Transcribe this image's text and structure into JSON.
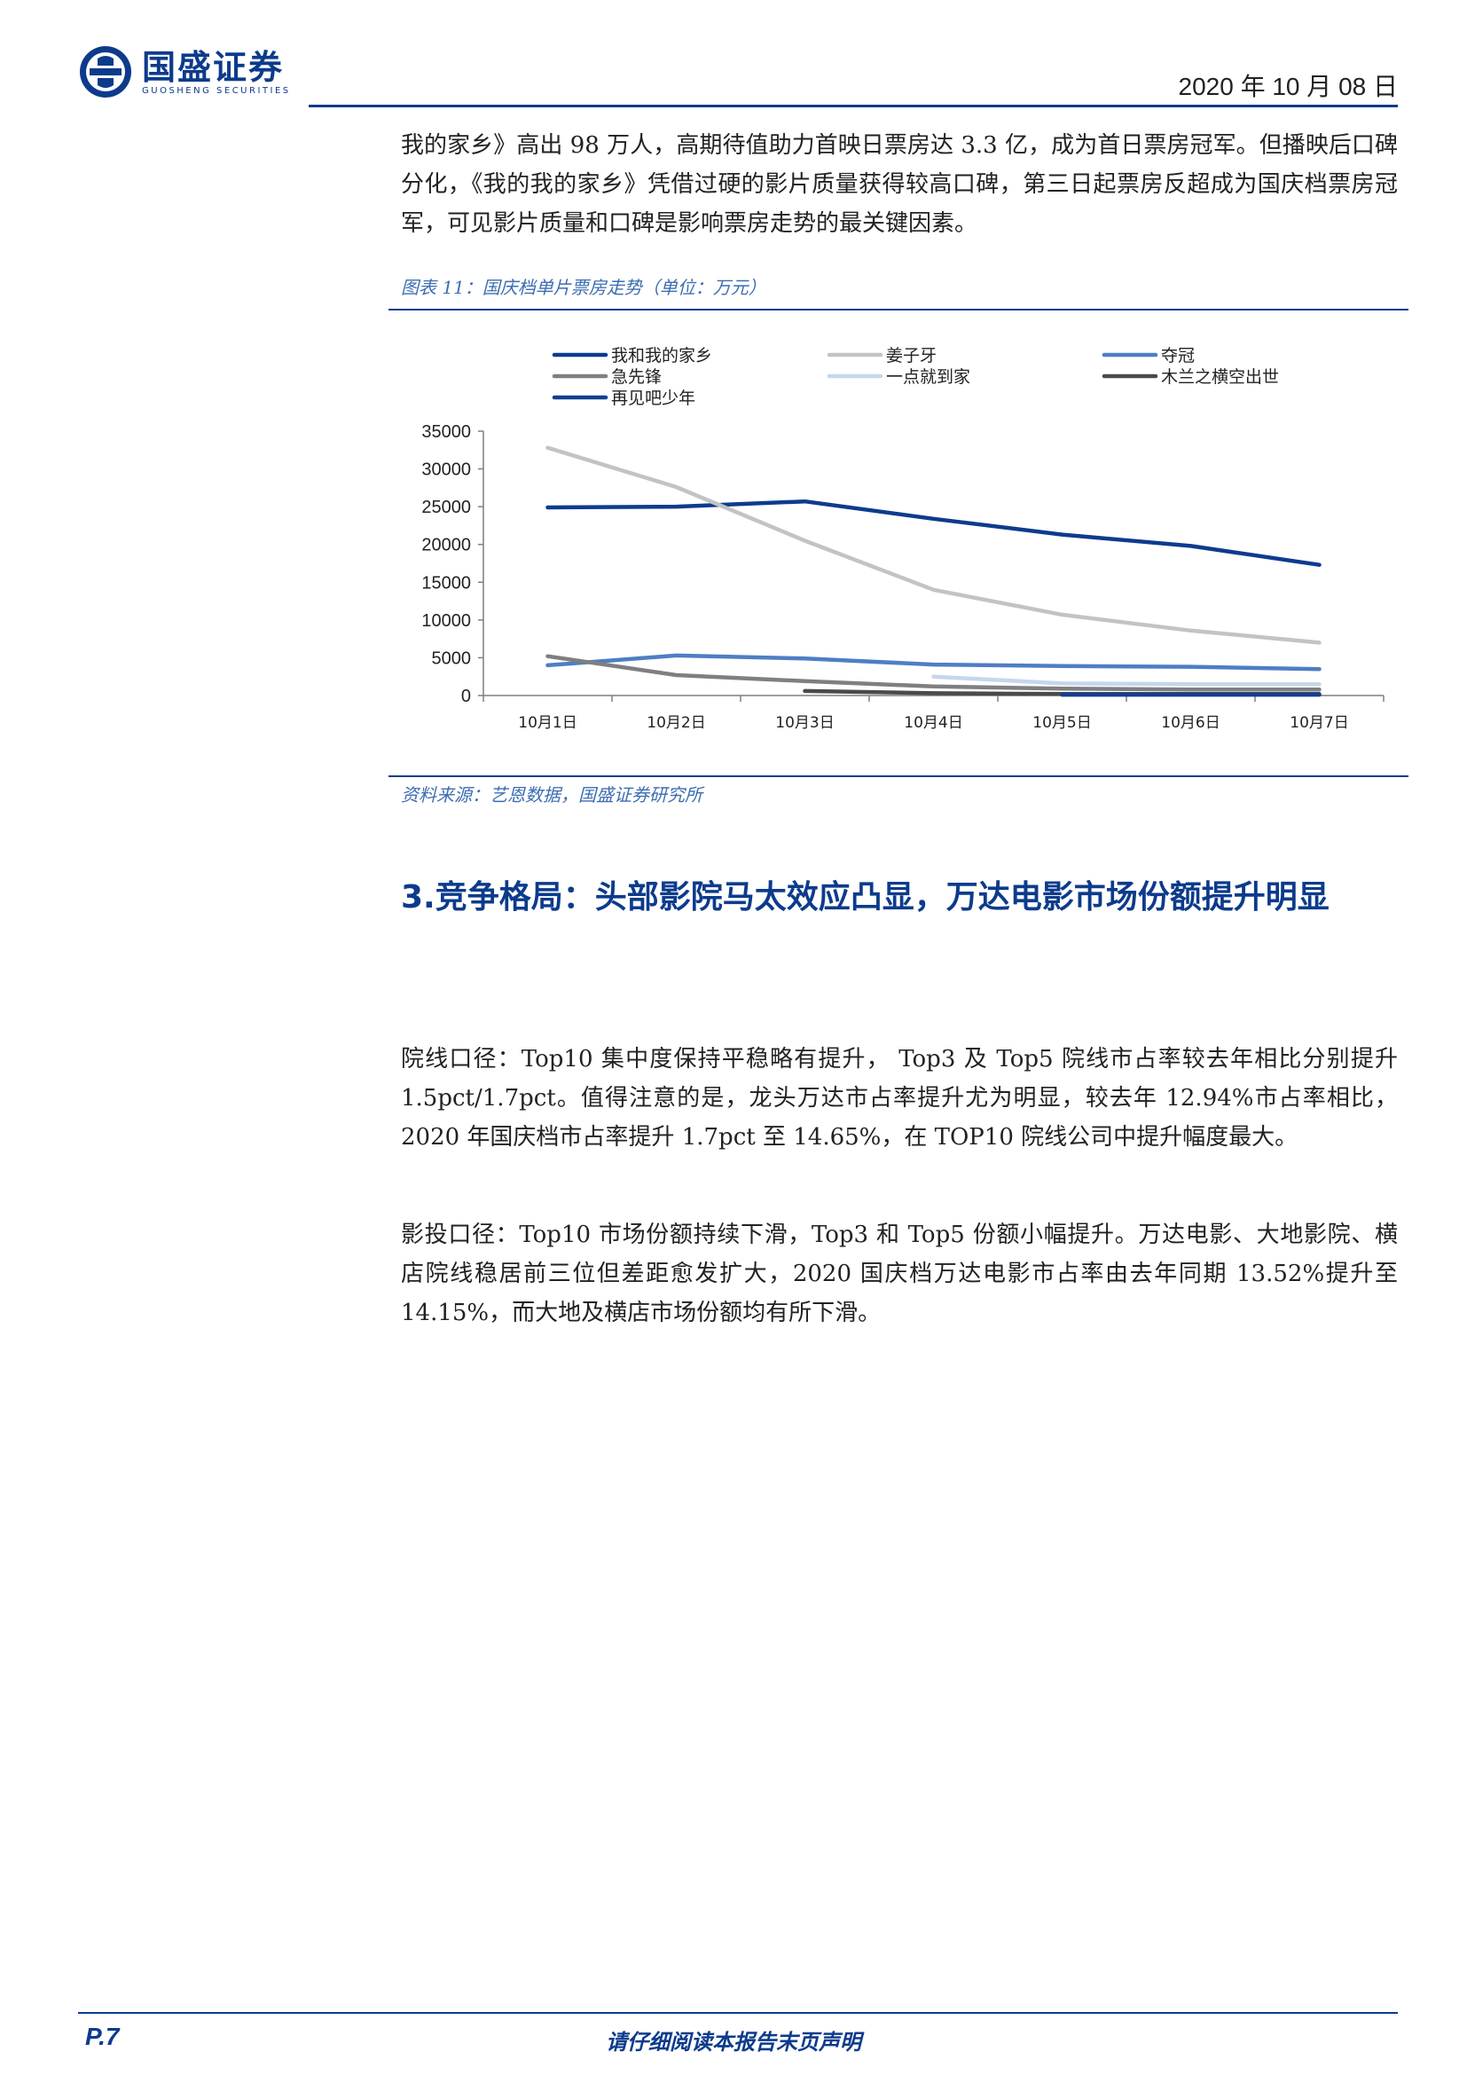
{
  "header": {
    "logo_cn": "国盛证券",
    "logo_en": "GUOSHENG SECURITIES",
    "date": "2020 年 10 月 08 日"
  },
  "intro_paragraph": "我的家乡》高出 98 万人，高期待值助力首映日票房达 3.3 亿，成为首日票房冠军。但播映后口碑分化，《我的我的家乡》凭借过硬的影片质量获得较高口碑，第三日起票房反超成为国庆档票房冠军，可见影片质量和口碑是影响票房走势的最关键因素。",
  "figure": {
    "title": "图表 11：国庆档单片票房走势（单位：万元）",
    "source": "资料来源：艺恩数据，国盛证券研究所"
  },
  "chart_data": {
    "type": "line",
    "title": "",
    "xlabel": "",
    "ylabel": "",
    "categories": [
      "10月1日",
      "10月2日",
      "10月3日",
      "10月4日",
      "10月5日",
      "10月6日",
      "10月7日"
    ],
    "ylim": [
      0,
      35000
    ],
    "yticks": [
      0,
      5000,
      10000,
      15000,
      20000,
      25000,
      30000,
      35000
    ],
    "grid": false,
    "legend_position": "top",
    "series": [
      {
        "name": "我和我的家乡",
        "color": "#0d3b8e",
        "values": [
          24900,
          25000,
          25700,
          23400,
          21300,
          19800,
          17300
        ]
      },
      {
        "name": "姜子牙",
        "color": "#c3c3c3",
        "values": [
          32800,
          27600,
          20500,
          14000,
          10700,
          8600,
          7000
        ]
      },
      {
        "name": "夺冠",
        "color": "#4e7ec4",
        "values": [
          4000,
          5300,
          4900,
          4100,
          3900,
          3800,
          3500
        ]
      },
      {
        "name": "急先锋",
        "color": "#7f7f7f",
        "values": [
          5200,
          2700,
          1900,
          1200,
          900,
          800,
          800
        ]
      },
      {
        "name": "一点就到家",
        "color": "#c6d6ec",
        "values": [
          null,
          null,
          null,
          2500,
          1600,
          1500,
          1500
        ]
      },
      {
        "name": "木兰之横空出世",
        "color": "#4a4a4a",
        "values": [
          null,
          null,
          600,
          300,
          200,
          200,
          200
        ]
      },
      {
        "name": "再见吧少年",
        "color": "#123f91",
        "values": [
          null,
          null,
          null,
          null,
          100,
          100,
          100
        ]
      }
    ]
  },
  "section": {
    "heading": "3.竞争格局：头部影院马太效应凸显，万达电影市场份额提升明显"
  },
  "paragraph2": "院线口径：Top10 集中度保持平稳略有提升， Top3 及 Top5 院线市占率较去年相比分别提升 1.5pct/1.7pct。值得注意的是，龙头万达市占率提升尤为明显，较去年 12.94%市占率相比，2020 年国庆档市占率提升 1.7pct 至 14.65%，在 TOP10 院线公司中提升幅度最大。",
  "paragraph3": "影投口径：Top10 市场份额持续下滑，Top3 和 Top5 份额小幅提升。万达电影、大地影院、横店院线稳居前三位但差距愈发扩大，2020 国庆档万达电影市占率由去年同期 13.52%提升至 14.15%，而大地及横店市场份额均有所下滑。",
  "footer": {
    "page": "P.7",
    "disclaimer": "请仔细阅读本报告末页声明"
  }
}
